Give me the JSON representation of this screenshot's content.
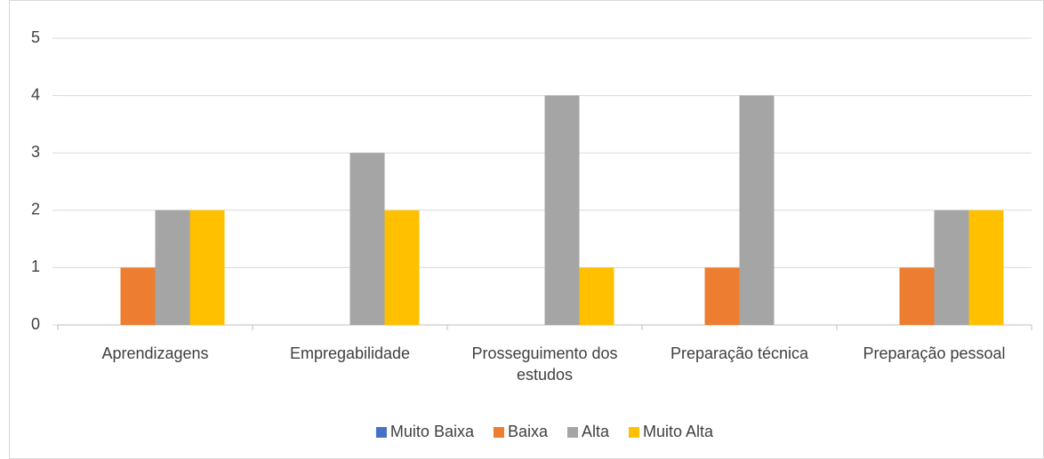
{
  "chart_data": {
    "type": "bar",
    "categories": [
      "Aprendizagens",
      "Empregabilidade",
      "Prosseguimento dos estudos",
      "Preparação técnica",
      "Preparação pessoal"
    ],
    "series": [
      {
        "name": "Muito Baixa",
        "color": "#4472c4",
        "values": [
          0,
          0,
          0,
          0,
          0
        ]
      },
      {
        "name": "Baixa",
        "color": "#ed7d31",
        "values": [
          1,
          0,
          0,
          1,
          1
        ]
      },
      {
        "name": "Alta",
        "color": "#a5a5a5",
        "values": [
          2,
          3,
          4,
          4,
          2
        ]
      },
      {
        "name": "Muito Alta",
        "color": "#ffc000",
        "values": [
          2,
          2,
          1,
          0,
          2
        ]
      }
    ],
    "ylim": [
      0,
      5
    ],
    "yticks": [
      0,
      1,
      2,
      3,
      4,
      5
    ],
    "grid": true,
    "legend": "bottom"
  }
}
